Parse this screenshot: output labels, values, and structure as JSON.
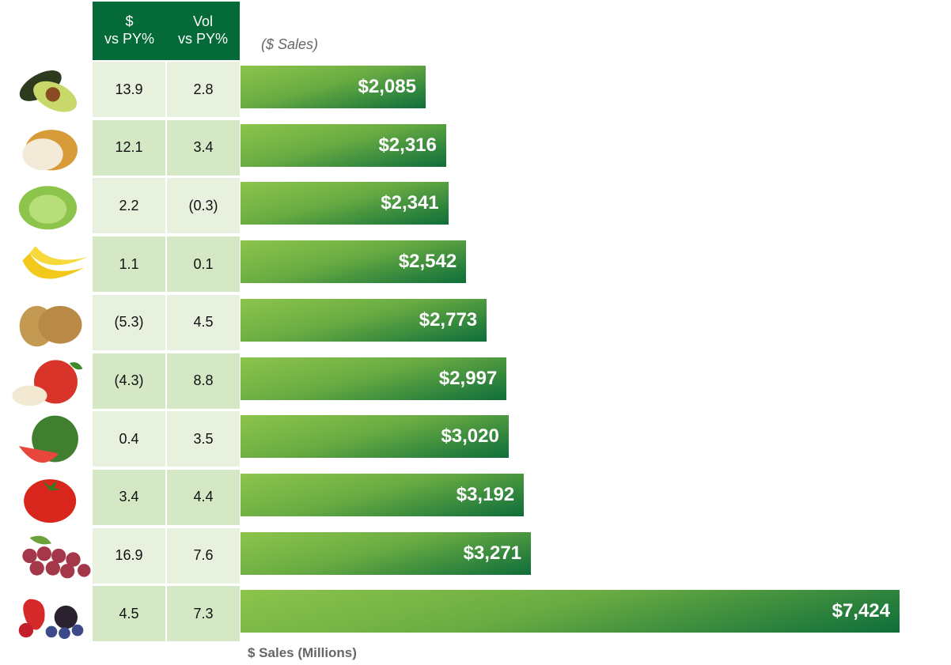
{
  "colors": {
    "header": "#046a38",
    "row_light": "#e7f1de",
    "row_dark": "#d5e8c5",
    "bar_light": "#8cc44c",
    "bar_dark": "#0e6e3a"
  },
  "table_headers": [
    {
      "line1": "$",
      "line2": "vs PY%"
    },
    {
      "line1": "Vol",
      "line2": "vs PY%"
    }
  ],
  "chart_data": {
    "type": "bar",
    "orientation": "horizontal",
    "subtitle": "($ Sales)",
    "xlabel": "$ Sales (Millions)",
    "categories": [
      "avocado",
      "onion",
      "lettuce",
      "banana",
      "potato",
      "apple",
      "watermelon",
      "tomato",
      "grapes",
      "berries"
    ],
    "values": [
      2085,
      2316,
      2341,
      2542,
      2773,
      2997,
      3020,
      3192,
      3271,
      7424
    ],
    "labels": [
      "$2,085",
      "$2,316",
      "$2,341",
      "$2,542",
      "$2,773",
      "$2,997",
      "$3,020",
      "$3,192",
      "$3,271",
      "$7,424"
    ],
    "dollar_vs_py": [
      "13.9",
      "12.1",
      "2.2",
      "1.1",
      "(5.3)",
      "(4.3)",
      "0.4",
      "3.4",
      "16.9",
      "4.5"
    ],
    "vol_vs_py": [
      "2.8",
      "3.4",
      "(0.3)",
      "0.1",
      "4.5",
      "8.8",
      "3.5",
      "4.4",
      "7.6",
      "7.3"
    ],
    "xlim": [
      0,
      7424
    ],
    "grid": false
  }
}
